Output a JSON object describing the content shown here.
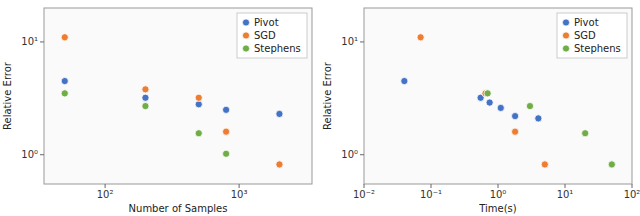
{
  "chart_data": [
    {
      "type": "scatter",
      "log": true,
      "grid": false,
      "legend": "upper right",
      "xlabel": "Number of Samples",
      "ylabel": "Relative Error",
      "xlim": [
        35,
        3500
      ],
      "ylim": [
        0.55,
        20
      ],
      "xticks": [
        {
          "value": 100,
          "label": "10²"
        },
        {
          "value": 1000,
          "label": "10³"
        }
      ],
      "yticks": [
        {
          "value": 1.0,
          "label": "10⁰"
        },
        {
          "value": 10.0,
          "label": "10¹"
        }
      ],
      "series": [
        {
          "name": "Pivot",
          "color": "#4472c4",
          "x": [
            50,
            200,
            500,
            800,
            2000
          ],
          "values": [
            4.5,
            3.2,
            2.8,
            2.5,
            2.3
          ]
        },
        {
          "name": "SGD",
          "color": "#ed7d31",
          "x": [
            50,
            200,
            500,
            800,
            2000
          ],
          "values": [
            11.0,
            3.8,
            3.2,
            1.6,
            0.82
          ]
        },
        {
          "name": "Stephens",
          "color": "#70ad47",
          "x": [
            50,
            200,
            500,
            800
          ],
          "values": [
            3.5,
            2.7,
            1.55,
            1.02
          ]
        }
      ]
    },
    {
      "type": "scatter",
      "log": true,
      "grid": false,
      "legend": "upper right",
      "xlabel": "Time(s)",
      "ylabel": "Relative Error",
      "xlim": [
        0.01,
        100
      ],
      "ylim": [
        0.55,
        20
      ],
      "xticks": [
        {
          "value": 0.01,
          "label": "10⁻²"
        },
        {
          "value": 0.1,
          "label": "10⁻¹"
        },
        {
          "value": 1,
          "label": "10⁰"
        },
        {
          "value": 10,
          "label": "10¹"
        },
        {
          "value": 100,
          "label": "10²"
        }
      ],
      "yticks": [
        {
          "value": 1.0,
          "label": "10⁰"
        },
        {
          "value": 10.0,
          "label": "10¹"
        }
      ],
      "series": [
        {
          "name": "Pivot",
          "color": "#4472c4",
          "x": [
            0.04,
            0.55,
            0.75,
            1.1,
            1.8,
            4.0
          ],
          "values": [
            4.5,
            3.2,
            2.9,
            2.6,
            2.2,
            2.1
          ]
        },
        {
          "name": "SGD",
          "color": "#ed7d31",
          "x": [
            0.07,
            0.65,
            1.8,
            5.0
          ],
          "values": [
            11.0,
            3.5,
            1.6,
            0.82
          ]
        },
        {
          "name": "Stephens",
          "color": "#70ad47",
          "x": [
            0.7,
            3.0,
            20.0,
            50.0
          ],
          "values": [
            3.5,
            2.7,
            1.55,
            0.82
          ]
        }
      ]
    }
  ]
}
